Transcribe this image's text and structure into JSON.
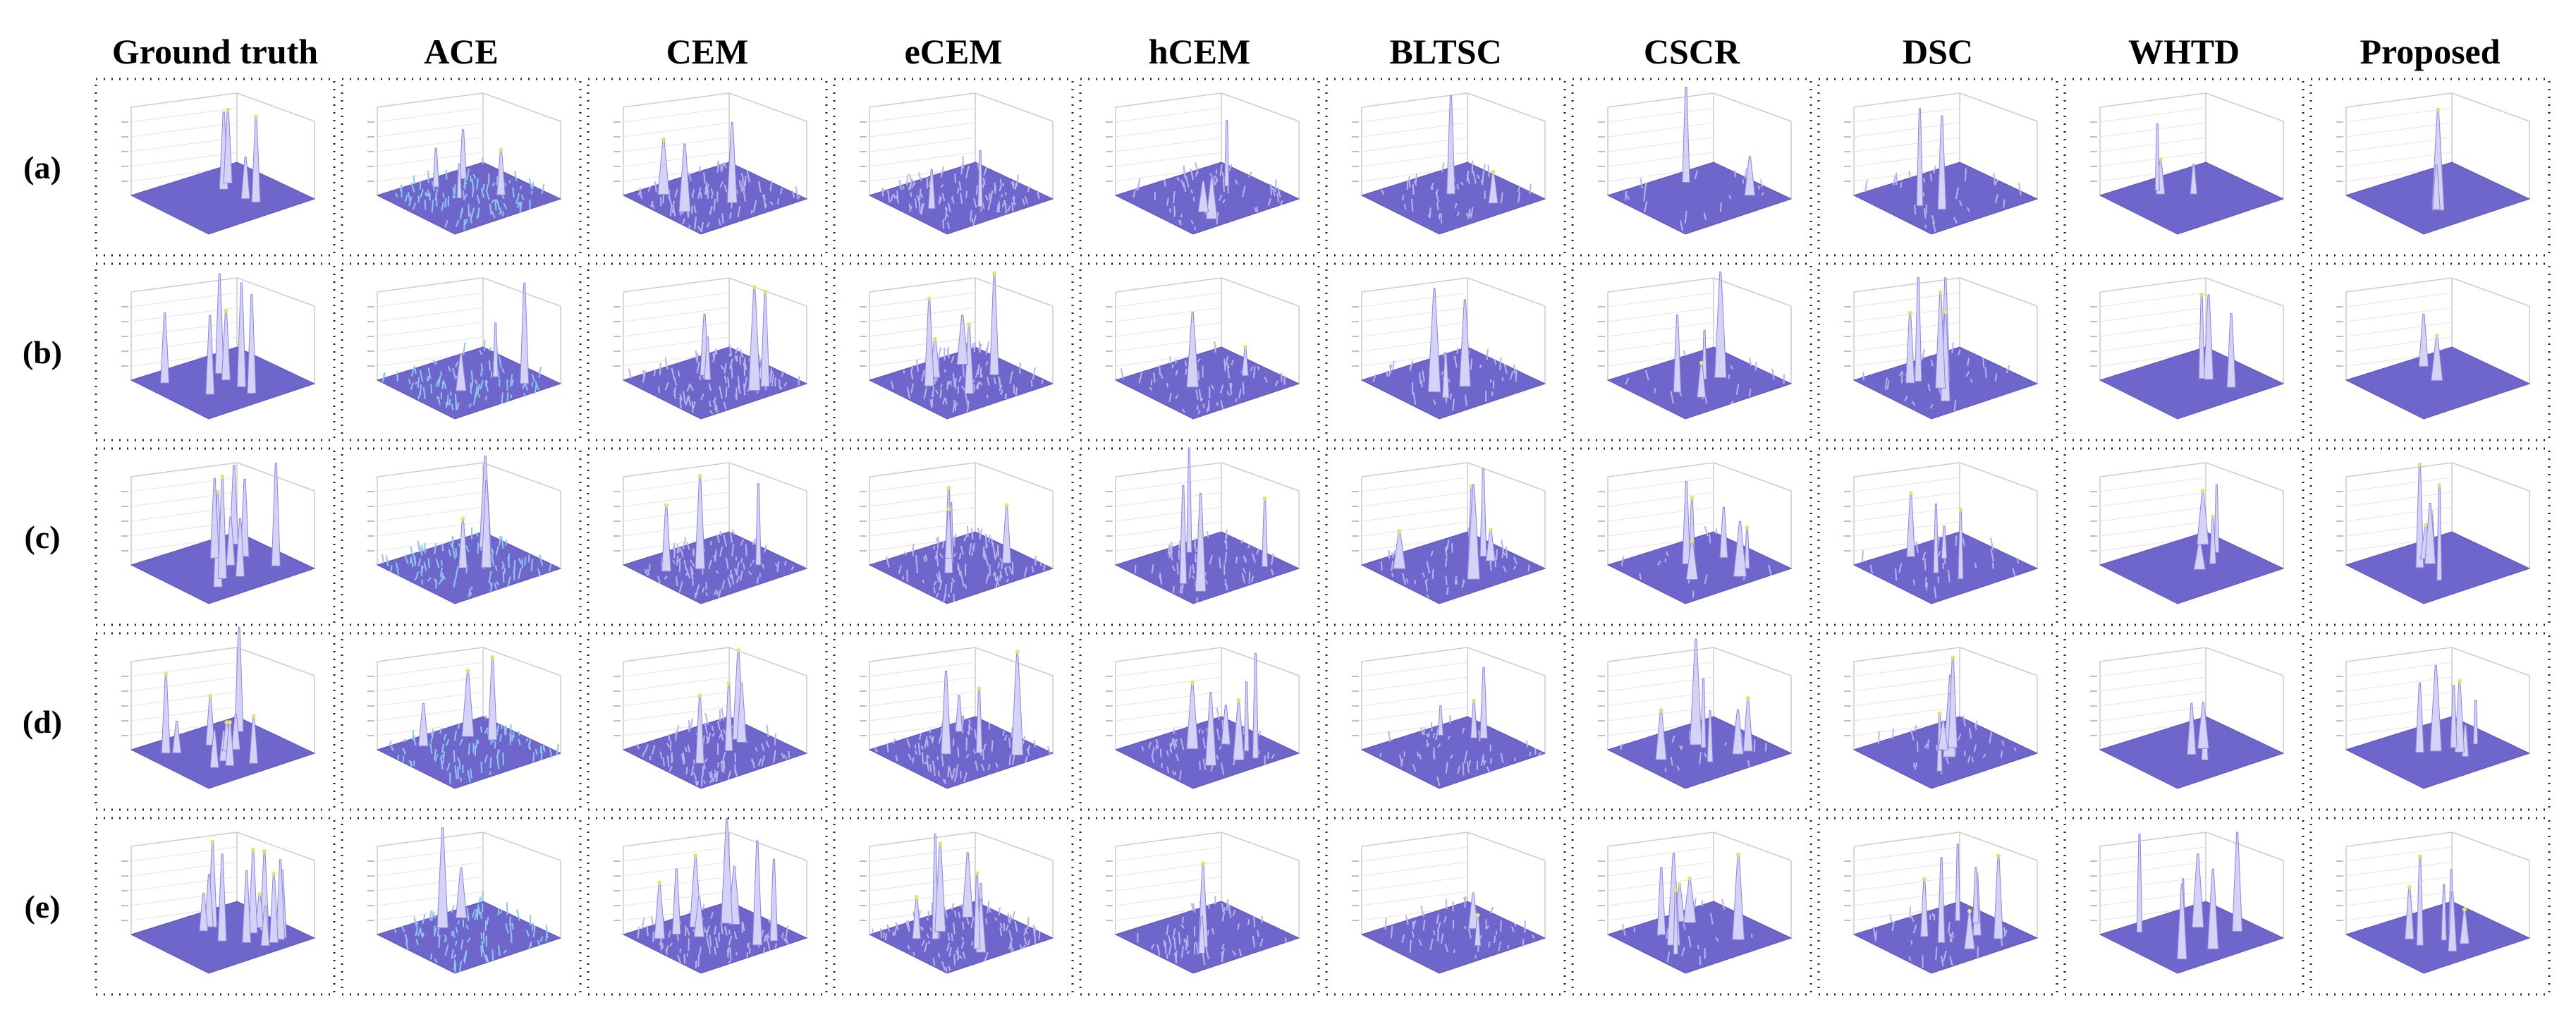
{
  "column_headers": [
    "Ground truth",
    "ACE",
    "CEM",
    "eCEM",
    "hCEM",
    "BLTSC",
    "CSCR",
    "DSC",
    "WHTD",
    "Proposed"
  ],
  "row_labels": [
    "(a)",
    "(b)",
    "(c)",
    "(d)",
    "(e)"
  ]
}
